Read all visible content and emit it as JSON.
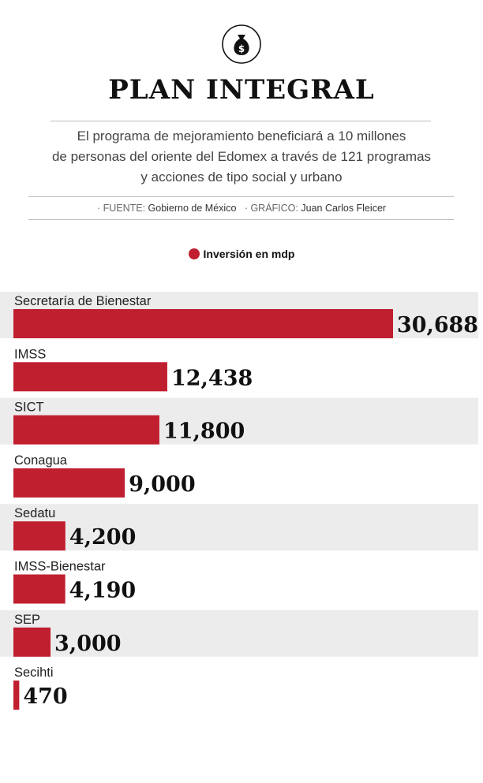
{
  "header": {
    "icon": "money-bag-icon",
    "title": "PLAN INTEGRAL",
    "description_lines": [
      "El programa de mejoramiento beneficiará a 10 millones",
      "de personas del oriente del Edomex a través de 121 programas",
      "y acciones de tipo social y urbano"
    ],
    "source_label": "· FUENTE:",
    "source_value": "Gobierno de México",
    "graphic_label": "· GRÁFICO:",
    "graphic_value": "Juan Carlos Fleicer"
  },
  "colors": {
    "bar": "#c01f30",
    "band": "#ececec",
    "value_text": "#111111"
  },
  "chart_data": {
    "type": "bar",
    "orientation": "horizontal",
    "legend": "top-center",
    "series": [
      {
        "name": "Inversión en mdp",
        "values": [
          30688,
          12438,
          11800,
          9000,
          4200,
          4190,
          3000,
          470
        ],
        "value_labels": [
          "30,688",
          "12,438",
          "11,800",
          "9,000",
          "4,200",
          "4,190",
          "3,000",
          "470"
        ]
      }
    ],
    "categories": [
      "Secretaría de Bienestar",
      "IMSS",
      "SICT",
      "Conagua",
      "Sedatu",
      "IMSS-Bienestar",
      "SEP",
      "Secihti"
    ],
    "xlim": [
      0,
      30688
    ]
  }
}
